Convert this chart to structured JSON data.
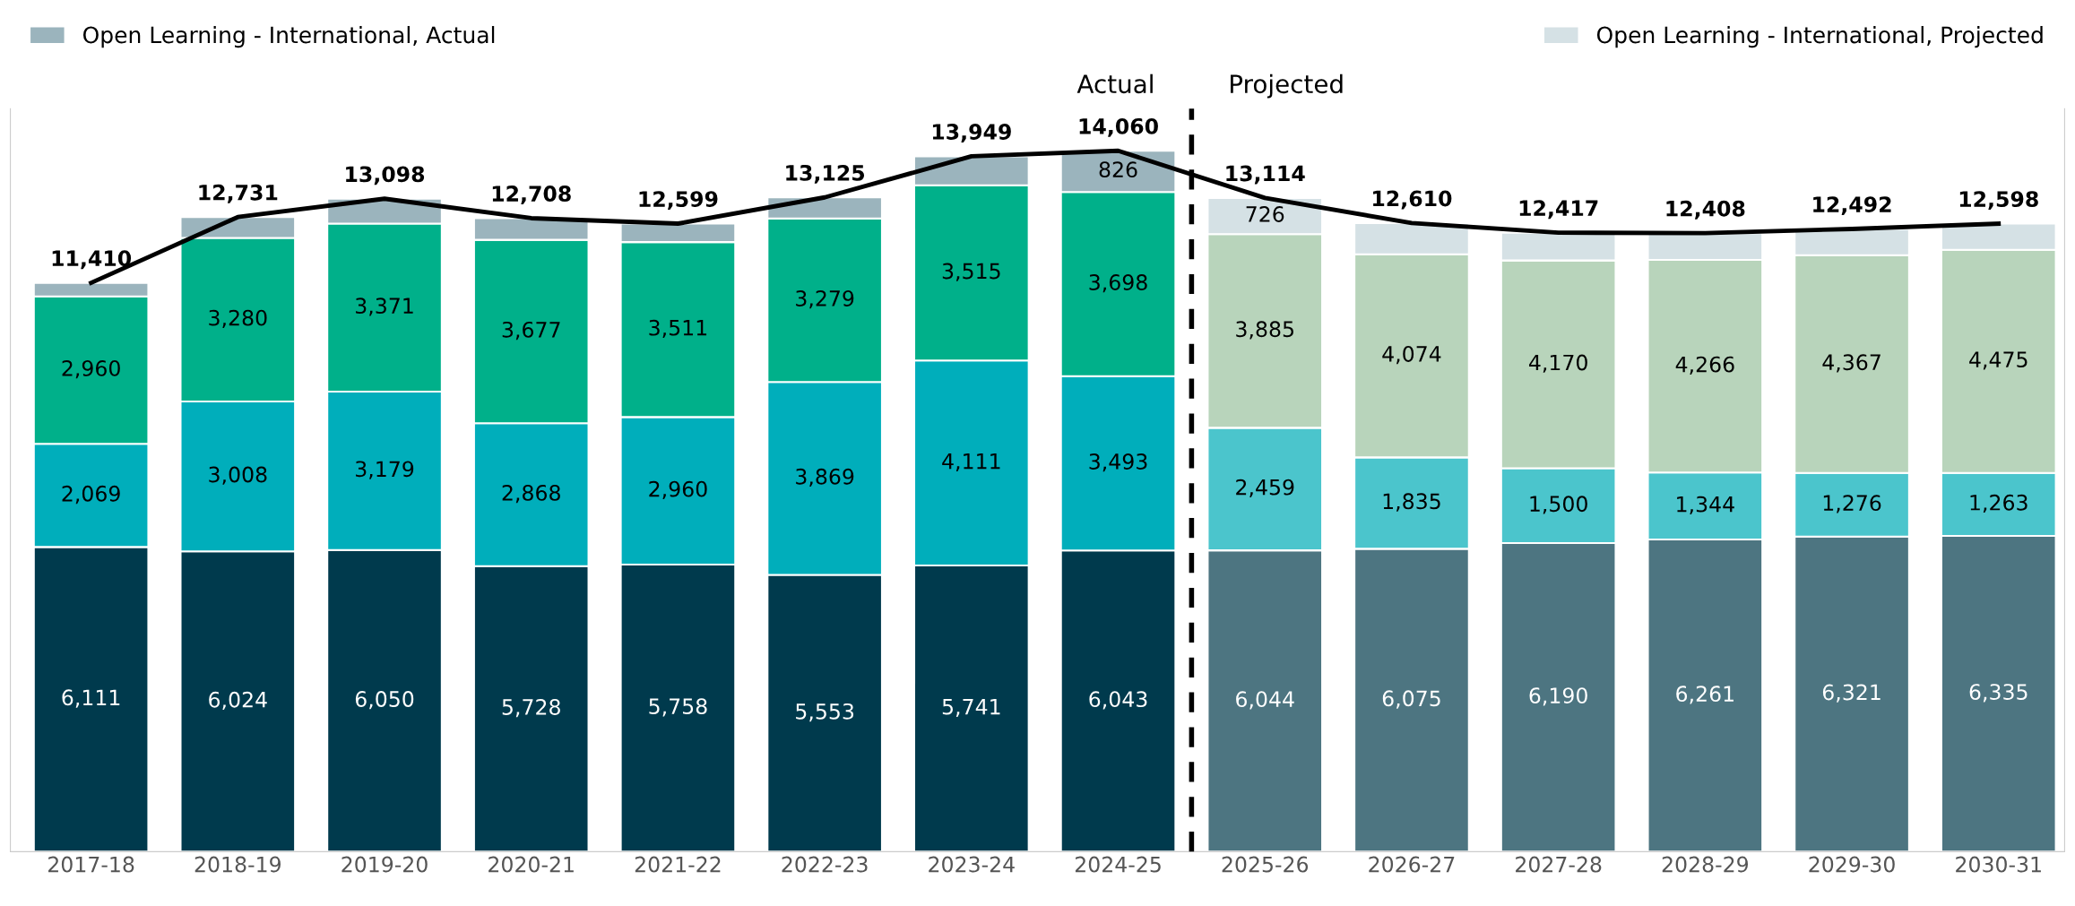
{
  "chart_data": {
    "type": "bar",
    "stacked": true,
    "legend": "top",
    "grid": false,
    "categories": [
      "2017-18",
      "2018-19",
      "2019-20",
      "2020-21",
      "2021-22",
      "2022-23",
      "2023-24",
      "2024-25",
      "2025-26",
      "2026-27",
      "2027-28",
      "2028-29",
      "2029-30",
      "2030-31"
    ],
    "series": [
      {
        "color": "#003a4d",
        "values": [
          6111,
          6024,
          6050,
          5728,
          5758,
          5553,
          5741,
          6043,
          null,
          null,
          null,
          null,
          null,
          null
        ],
        "value_labels": [
          "6,111",
          "6,024",
          "6,050",
          "5,728",
          "5,758",
          "5,553",
          "5,741",
          "6,043",
          null,
          null,
          null,
          null,
          null,
          null
        ]
      },
      {
        "color": "#00aebb",
        "values": [
          2069,
          3008,
          3179,
          2868,
          2960,
          3869,
          4111,
          3493,
          null,
          null,
          null,
          null,
          null,
          null
        ],
        "value_labels": [
          "2,069",
          "3,008",
          "3,179",
          "2,868",
          "2,960",
          "3,869",
          "4,111",
          "3,493",
          null,
          null,
          null,
          null,
          null,
          null
        ]
      },
      {
        "color": "#00b08a",
        "values": [
          2960,
          3280,
          3371,
          3677,
          3511,
          3279,
          3515,
          3698,
          null,
          null,
          null,
          null,
          null,
          null
        ],
        "value_labels": [
          "2,960",
          "3,280",
          "3,371",
          "3,677",
          "3,511",
          "3,279",
          "3,515",
          "3,698",
          null,
          null,
          null,
          null,
          null,
          null
        ]
      },
      {
        "name": "Open Learning - International, Actual",
        "color": "#9bb4bd",
        "values": [
          270,
          419,
          498,
          435,
          370,
          424,
          582,
          826,
          null,
          null,
          null,
          null,
          null,
          null
        ],
        "value_labels": [
          null,
          null,
          null,
          null,
          null,
          null,
          null,
          "826",
          null,
          null,
          null,
          null,
          null,
          null
        ]
      },
      {
        "color": "#4d7581",
        "values": [
          null,
          null,
          null,
          null,
          null,
          null,
          null,
          null,
          6044,
          6075,
          6190,
          6261,
          6321,
          6335
        ],
        "value_labels": [
          null,
          null,
          null,
          null,
          null,
          null,
          null,
          null,
          "6,044",
          "6,075",
          "6,190",
          "6,261",
          "6,321",
          "6,335"
        ]
      },
      {
        "color": "#4bc5cc",
        "values": [
          null,
          null,
          null,
          null,
          null,
          null,
          null,
          null,
          2459,
          1835,
          1500,
          1344,
          1276,
          1263
        ],
        "value_labels": [
          null,
          null,
          null,
          null,
          null,
          null,
          null,
          null,
          "2,459",
          "1,835",
          "1,500",
          "1,344",
          "1,276",
          "1,263"
        ]
      },
      {
        "color": "#b8d4bb",
        "values": [
          null,
          null,
          null,
          null,
          null,
          null,
          null,
          null,
          3885,
          4074,
          4170,
          4266,
          4367,
          4475
        ],
        "value_labels": [
          null,
          null,
          null,
          null,
          null,
          null,
          null,
          null,
          "3,885",
          "4,074",
          "4,170",
          "4,266",
          "4,367",
          "4,475"
        ]
      },
      {
        "name": "Open Learning - International, Projected",
        "color": "#d5e1e5",
        "values": [
          null,
          null,
          null,
          null,
          null,
          null,
          null,
          null,
          726,
          626,
          557,
          537,
          528,
          525
        ],
        "value_labels": [
          null,
          null,
          null,
          null,
          null,
          null,
          null,
          null,
          "726",
          null,
          null,
          null,
          null,
          null
        ]
      },
      {
        "type": "line",
        "color": "#000000",
        "values": [
          11410,
          12731,
          13098,
          12708,
          12599,
          13125,
          13949,
          14060,
          13114,
          12610,
          12417,
          12408,
          12492,
          12598
        ],
        "value_labels": [
          "11,410",
          "12,731",
          "13,098",
          "12,708",
          "12,599",
          "13,125",
          "13,949",
          "14,060",
          "13,114",
          "12,610",
          "12,417",
          "12,408",
          "12,492",
          "12,598"
        ]
      }
    ],
    "annotations": [
      "Actual",
      "Projected"
    ]
  }
}
